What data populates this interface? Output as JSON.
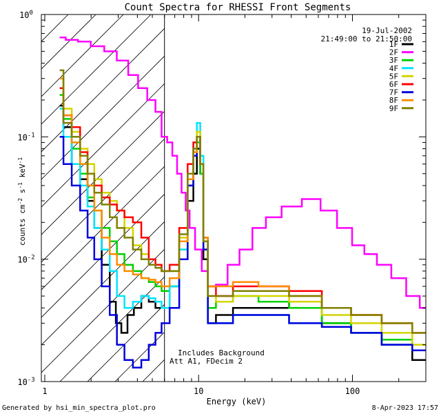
{
  "chart_data": {
    "type": "line",
    "title": "Count Spectra for RHESSI Front Segments",
    "xlabel": "Energy (keV)",
    "ylabel_base": "counts cm",
    "ylabel_exp1": "-2",
    "ylabel_mid": " s",
    "ylabel_exp2": "-1",
    "ylabel_mid2": " keV",
    "ylabel_exp3": "-1",
    "xscale": "log",
    "yscale": "log",
    "xlim": [
      0.95,
      300
    ],
    "ylim": [
      0.001,
      1.0
    ],
    "x_ticks": [
      {
        "value": 1,
        "label": "1"
      },
      {
        "value": 10,
        "label": "10"
      },
      {
        "value": 100,
        "label": "100"
      }
    ],
    "y_ticks": [
      {
        "value": 1.0,
        "base": "10",
        "exp": "0"
      },
      {
        "value": 0.1,
        "base": "10",
        "exp": "-1"
      },
      {
        "value": 0.01,
        "base": "10",
        "exp": "-2"
      },
      {
        "value": 0.001,
        "base": "10",
        "exp": "-3"
      }
    ],
    "date": "19-Jul-2002",
    "time_range": "21:49:00 to 21:50:00",
    "annotation_lines": [
      "Includes Background",
      "Att A1, FDecim 2"
    ],
    "shaded_region_upper_keV": 6,
    "footer_left": "Generated by hsi_min_spectra_plot.pro",
    "footer_right": "8-Apr-2023 17:57",
    "series": [
      {
        "name": "1F",
        "color": "#000000",
        "x": [
          1.25,
          1.4,
          1.6,
          1.8,
          2.0,
          2.2,
          2.5,
          2.8,
          3.0,
          3.3,
          3.6,
          4.0,
          4.5,
          5.0,
          5.5,
          6.0,
          7,
          8,
          9,
          9.5,
          10,
          10.5,
          11,
          12,
          14,
          20,
          30,
          50,
          80,
          120,
          200,
          300
        ],
        "y": [
          0.18,
          0.12,
          0.06,
          0.045,
          0.03,
          0.018,
          0.009,
          0.0045,
          0.003,
          0.0025,
          0.0035,
          0.004,
          0.005,
          0.0045,
          0.004,
          0.004,
          0.006,
          0.01,
          0.03,
          0.05,
          0.08,
          0.05,
          0.01,
          0.003,
          0.0035,
          0.004,
          0.004,
          0.0045,
          0.003,
          0.0025,
          0.002,
          0.0015
        ]
      },
      {
        "name": "2F",
        "color": "#ff00ff",
        "x": [
          1.25,
          1.5,
          1.8,
          2.2,
          2.7,
          3.2,
          3.8,
          4.3,
          5.0,
          5.5,
          6.0,
          6.5,
          7,
          7.5,
          8,
          8.5,
          9,
          10,
          11,
          12,
          14,
          17,
          20,
          25,
          30,
          40,
          55,
          70,
          90,
          110,
          130,
          160,
          200,
          250,
          300
        ],
        "y": [
          0.65,
          0.62,
          0.6,
          0.55,
          0.5,
          0.42,
          0.32,
          0.25,
          0.2,
          0.16,
          0.1,
          0.09,
          0.07,
          0.05,
          0.035,
          0.025,
          0.018,
          0.012,
          0.008,
          0.006,
          0.0062,
          0.009,
          0.012,
          0.018,
          0.022,
          0.027,
          0.031,
          0.025,
          0.018,
          0.013,
          0.011,
          0.009,
          0.007,
          0.005,
          0.004
        ]
      },
      {
        "name": "3F",
        "color": "#00d000",
        "x": [
          1.25,
          1.4,
          1.6,
          1.8,
          2.0,
          2.2,
          2.5,
          2.8,
          3.1,
          3.5,
          4.0,
          4.5,
          5.0,
          5.5,
          6.0,
          7,
          8,
          9,
          9.5,
          10,
          10.5,
          11,
          12,
          14,
          20,
          30,
          50,
          80,
          120,
          200,
          300
        ],
        "y": [
          0.22,
          0.14,
          0.08,
          0.05,
          0.032,
          0.025,
          0.018,
          0.014,
          0.011,
          0.009,
          0.008,
          0.007,
          0.0065,
          0.006,
          0.0055,
          0.006,
          0.012,
          0.04,
          0.07,
          0.09,
          0.05,
          0.012,
          0.004,
          0.0045,
          0.005,
          0.0045,
          0.004,
          0.003,
          0.0025,
          0.0022,
          0.0018
        ]
      },
      {
        "name": "4F",
        "color": "#00e5ff",
        "x": [
          1.25,
          1.4,
          1.6,
          1.8,
          2.0,
          2.2,
          2.5,
          2.8,
          3.1,
          3.5,
          4.0,
          4.5,
          5.0,
          5.5,
          6.0,
          7,
          8,
          9,
          9.5,
          10,
          10.5,
          11,
          12,
          14,
          20,
          30,
          50,
          80,
          120,
          200,
          300
        ],
        "y": [
          0.17,
          0.1,
          0.06,
          0.04,
          0.027,
          0.018,
          0.012,
          0.008,
          0.005,
          0.004,
          0.0045,
          0.005,
          0.0048,
          0.0045,
          0.004,
          0.006,
          0.012,
          0.05,
          0.09,
          0.13,
          0.07,
          0.015,
          0.003,
          0.003,
          0.0035,
          0.0035,
          0.003,
          0.0028,
          0.0025,
          0.002,
          0.0018
        ]
      },
      {
        "name": "5F",
        "color": "#d4d400",
        "x": [
          1.25,
          1.4,
          1.6,
          1.8,
          2.0,
          2.2,
          2.5,
          2.8,
          3.1,
          3.5,
          4.0,
          4.5,
          5.0,
          5.5,
          6.0,
          7,
          8,
          9,
          9.5,
          10,
          10.5,
          11,
          12,
          14,
          20,
          30,
          50,
          80,
          120,
          200,
          300
        ],
        "y": [
          0.3,
          0.17,
          0.11,
          0.08,
          0.06,
          0.045,
          0.035,
          0.03,
          0.025,
          0.018,
          0.013,
          0.011,
          0.01,
          0.009,
          0.008,
          0.008,
          0.015,
          0.05,
          0.08,
          0.11,
          0.06,
          0.015,
          0.005,
          0.0045,
          0.005,
          0.005,
          0.0045,
          0.0035,
          0.003,
          0.0025,
          0.002
        ]
      },
      {
        "name": "6F",
        "color": "#ff0000",
        "x": [
          1.25,
          1.4,
          1.6,
          1.8,
          2.0,
          2.2,
          2.5,
          2.8,
          3.1,
          3.5,
          4.0,
          4.5,
          5.0,
          5.5,
          6.0,
          7,
          8,
          9,
          9.5,
          10,
          10.5,
          11,
          12,
          14,
          20,
          30,
          50,
          80,
          120,
          200,
          300
        ],
        "y": [
          0.25,
          0.15,
          0.12,
          0.075,
          0.05,
          0.04,
          0.032,
          0.028,
          0.025,
          0.022,
          0.02,
          0.015,
          0.01,
          0.009,
          0.008,
          0.009,
          0.018,
          0.06,
          0.09,
          0.1,
          0.06,
          0.015,
          0.006,
          0.005,
          0.006,
          0.006,
          0.0055,
          0.004,
          0.0035,
          0.003,
          0.0025
        ]
      },
      {
        "name": "7F",
        "color": "#0000dd",
        "x": [
          1.25,
          1.4,
          1.6,
          1.8,
          2.0,
          2.2,
          2.5,
          2.8,
          3.1,
          3.5,
          4.0,
          4.5,
          5.0,
          5.5,
          6.0,
          7,
          8,
          9,
          9.5,
          10,
          10.5,
          11,
          12,
          14,
          20,
          30,
          50,
          80,
          120,
          200,
          300
        ],
        "y": [
          0.1,
          0.06,
          0.04,
          0.025,
          0.015,
          0.01,
          0.006,
          0.0035,
          0.002,
          0.0015,
          0.0013,
          0.0015,
          0.002,
          0.0025,
          0.003,
          0.004,
          0.01,
          0.04,
          0.07,
          0.1,
          0.06,
          0.012,
          0.003,
          0.003,
          0.0035,
          0.0035,
          0.003,
          0.0028,
          0.0025,
          0.002,
          0.0018
        ]
      },
      {
        "name": "8F",
        "color": "#ff8c00",
        "x": [
          1.25,
          1.4,
          1.6,
          1.8,
          2.0,
          2.2,
          2.5,
          2.8,
          3.1,
          3.5,
          4.0,
          4.5,
          5.0,
          5.5,
          6.0,
          7,
          8,
          9,
          9.5,
          10,
          10.5,
          11,
          12,
          14,
          20,
          30,
          50,
          80,
          120,
          200,
          300
        ],
        "y": [
          0.3,
          0.15,
          0.09,
          0.06,
          0.04,
          0.025,
          0.015,
          0.011,
          0.009,
          0.008,
          0.0075,
          0.007,
          0.0068,
          0.0065,
          0.006,
          0.007,
          0.014,
          0.045,
          0.075,
          0.1,
          0.06,
          0.015,
          0.006,
          0.006,
          0.0065,
          0.006,
          0.005,
          0.004,
          0.0035,
          0.003,
          0.0025
        ]
      },
      {
        "name": "9F",
        "color": "#808000",
        "x": [
          1.25,
          1.4,
          1.6,
          1.8,
          2.0,
          2.2,
          2.5,
          2.8,
          3.1,
          3.5,
          4.0,
          4.5,
          5.0,
          5.5,
          6.0,
          7,
          8,
          9,
          9.5,
          10,
          10.5,
          11,
          12,
          14,
          20,
          30,
          50,
          80,
          120,
          200,
          300
        ],
        "y": [
          0.35,
          0.13,
          0.1,
          0.07,
          0.05,
          0.035,
          0.028,
          0.022,
          0.018,
          0.015,
          0.012,
          0.01,
          0.009,
          0.0085,
          0.008,
          0.008,
          0.016,
          0.05,
          0.08,
          0.1,
          0.06,
          0.014,
          0.005,
          0.005,
          0.0055,
          0.0055,
          0.005,
          0.004,
          0.0035,
          0.003,
          0.0025
        ]
      }
    ]
  }
}
